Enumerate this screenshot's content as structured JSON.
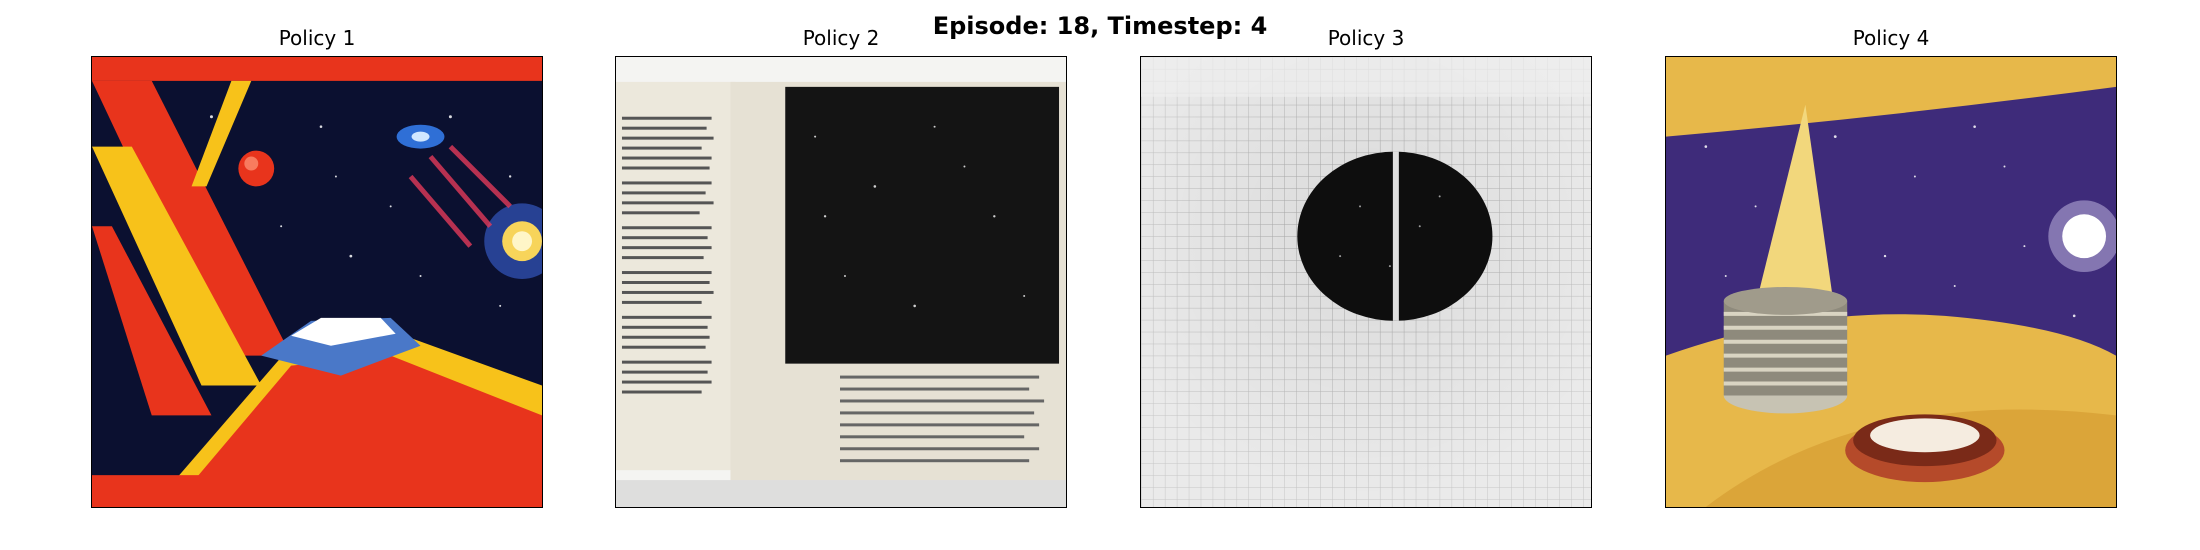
{
  "figure": {
    "title": "Episode: 18, Timestep: 4"
  },
  "panels": [
    {
      "title": "Policy 1",
      "image": "retro-space-poster-spaceship"
    },
    {
      "title": "Policy 2",
      "image": "open-book-starfield-page"
    },
    {
      "title": "Policy 3",
      "image": "grid-dark-circle-grayscale"
    },
    {
      "title": "Policy 4",
      "image": "cosmic-cake-stack-illustration"
    }
  ],
  "colors": {
    "poster_red": "#e8341c",
    "poster_yellow": "#f7c21a",
    "space_dark": "#0b1030",
    "nebula_purple": "#3e2b7a",
    "paper": "#ece8dc",
    "gold": "#e7b84a"
  }
}
